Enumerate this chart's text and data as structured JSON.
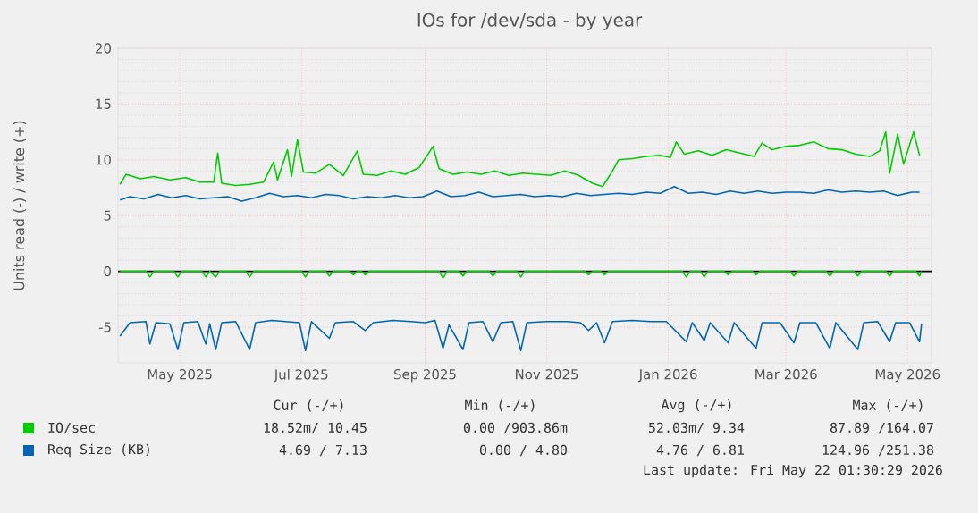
{
  "chart_data": {
    "type": "line",
    "title": "IOs for /dev/sda - by year",
    "ylabel": "Units read (-) / write (+)",
    "xlim": [
      "2025-04-14",
      "2026-05-27"
    ],
    "ylim": [
      -8.2,
      20
    ],
    "xticks": [
      {
        "value": "2025-05-15",
        "label": "May 2025"
      },
      {
        "value": "2025-07-15",
        "label": "Jul 2025"
      },
      {
        "value": "2025-09-15",
        "label": "Sep 2025"
      },
      {
        "value": "2025-11-15",
        "label": "Nov 2025"
      },
      {
        "value": "2026-01-15",
        "label": "Jan 2026"
      },
      {
        "value": "2026-03-15",
        "label": "Mar 2026"
      },
      {
        "value": "2026-05-15",
        "label": "May 2026"
      }
    ],
    "yticks": [
      -5,
      0,
      5,
      10,
      15,
      20
    ],
    "grid": true,
    "legend": "bottom",
    "ref_lines": [
      {
        "axis": "y",
        "value": 0,
        "color": "#000000"
      }
    ],
    "series": [
      {
        "name": "IO/sec",
        "color": "#00cc00",
        "x": [
          "2025-04-15",
          "2025-04-18",
          "2025-04-25",
          "2025-05-02",
          "2025-05-10",
          "2025-05-18",
          "2025-05-25",
          "2025-06-01",
          "2025-06-03",
          "2025-06-05",
          "2025-06-12",
          "2025-06-19",
          "2025-06-26",
          "2025-07-01",
          "2025-07-03",
          "2025-07-08",
          "2025-07-10",
          "2025-07-13",
          "2025-07-16",
          "2025-07-22",
          "2025-07-29",
          "2025-08-05",
          "2025-08-12",
          "2025-08-15",
          "2025-08-22",
          "2025-08-29",
          "2025-09-05",
          "2025-09-12",
          "2025-09-19",
          "2025-09-22",
          "2025-09-29",
          "2025-10-06",
          "2025-10-13",
          "2025-10-20",
          "2025-10-27",
          "2025-11-03",
          "2025-11-10",
          "2025-11-17",
          "2025-11-24",
          "2025-12-01",
          "2025-12-08",
          "2025-12-13",
          "2025-12-18",
          "2025-12-21",
          "2025-12-28",
          "2026-01-04",
          "2026-01-11",
          "2026-01-16",
          "2026-01-19",
          "2026-01-23",
          "2026-01-30",
          "2026-02-06",
          "2026-02-13",
          "2026-02-20",
          "2026-02-27",
          "2026-03-03",
          "2026-03-08",
          "2026-03-15",
          "2026-03-22",
          "2026-03-29",
          "2026-04-05",
          "2026-04-12",
          "2026-04-19",
          "2026-04-26",
          "2026-05-01",
          "2026-05-04",
          "2026-05-06",
          "2026-05-10",
          "2026-05-13",
          "2026-05-18",
          "2026-05-21"
        ],
        "values": [
          7.8,
          8.7,
          8.3,
          8.5,
          8.2,
          8.4,
          8.0,
          8.0,
          10.6,
          7.9,
          7.7,
          7.8,
          8.0,
          9.8,
          8.2,
          10.9,
          8.5,
          11.8,
          8.9,
          8.8,
          9.6,
          8.6,
          10.8,
          8.7,
          8.6,
          9.0,
          8.7,
          9.3,
          11.2,
          9.2,
          8.7,
          8.9,
          8.7,
          9.0,
          8.6,
          8.8,
          8.7,
          8.6,
          9.0,
          8.6,
          7.9,
          7.6,
          9.0,
          10.0,
          10.1,
          10.3,
          10.4,
          10.2,
          11.6,
          10.5,
          10.8,
          10.4,
          10.9,
          10.6,
          10.3,
          11.5,
          10.9,
          11.2,
          11.3,
          11.6,
          11.0,
          10.9,
          10.5,
          10.3,
          10.8,
          12.5,
          8.8,
          12.3,
          9.6,
          12.5,
          10.4
        ]
      },
      {
        "color": "#00cc00",
        "x": [
          "2025-04-15",
          "2025-04-28",
          "2025-04-30",
          "2025-05-02",
          "2025-05-12",
          "2025-05-14",
          "2025-05-16",
          "2025-05-26",
          "2025-05-28",
          "2025-05-30",
          "2025-06-02",
          "2025-06-04",
          "2025-06-17",
          "2025-06-19",
          "2025-06-21",
          "2025-07-15",
          "2025-07-17",
          "2025-07-19",
          "2025-07-27",
          "2025-07-29",
          "2025-07-31",
          "2025-08-08",
          "2025-08-10",
          "2025-08-12",
          "2025-08-14",
          "2025-08-16",
          "2025-08-18",
          "2025-09-22",
          "2025-09-24",
          "2025-09-26",
          "2025-10-02",
          "2025-10-04",
          "2025-10-06",
          "2025-10-17",
          "2025-10-19",
          "2025-10-21",
          "2025-10-31",
          "2025-11-02",
          "2025-11-04",
          "2025-12-04",
          "2025-12-06",
          "2025-12-08",
          "2025-12-12",
          "2025-12-14",
          "2025-12-16",
          "2026-01-22",
          "2026-01-24",
          "2026-01-26",
          "2026-01-31",
          "2026-02-02",
          "2026-02-04",
          "2026-02-12",
          "2026-02-14",
          "2026-02-16",
          "2026-02-26",
          "2026-02-28",
          "2026-03-02",
          "2026-03-17",
          "2026-03-19",
          "2026-03-21",
          "2026-04-04",
          "2026-04-06",
          "2026-04-08",
          "2026-04-18",
          "2026-04-20",
          "2026-04-22",
          "2026-05-04",
          "2026-05-06",
          "2026-05-08",
          "2026-05-19",
          "2026-05-21",
          "2026-05-22"
        ],
        "values": [
          0,
          0,
          -0.5,
          0,
          0,
          -0.5,
          0,
          0,
          -0.5,
          0,
          -0.5,
          0,
          0,
          -0.5,
          0,
          0,
          -0.5,
          0,
          0,
          -0.4,
          0,
          0,
          -0.3,
          0,
          0,
          -0.3,
          0,
          0,
          -0.6,
          0,
          0,
          -0.4,
          0,
          0,
          -0.4,
          0,
          0,
          -0.5,
          0,
          0,
          -0.3,
          0,
          0,
          -0.3,
          0,
          0,
          -0.5,
          0,
          0,
          -0.5,
          0,
          0,
          -0.3,
          0,
          0,
          -0.3,
          0,
          0,
          -0.4,
          0,
          0,
          -0.4,
          0,
          0,
          -0.4,
          0,
          0,
          -0.4,
          0,
          0,
          -0.4,
          0
        ]
      },
      {
        "name": "Req Size (KB)",
        "color": "#0066b3",
        "x": [
          "2025-04-15",
          "2025-04-20",
          "2025-04-27",
          "2025-05-04",
          "2025-05-11",
          "2025-05-18",
          "2025-05-25",
          "2025-06-01",
          "2025-06-08",
          "2025-06-15",
          "2025-06-22",
          "2025-06-29",
          "2025-07-06",
          "2025-07-13",
          "2025-07-20",
          "2025-07-27",
          "2025-08-03",
          "2025-08-10",
          "2025-08-17",
          "2025-08-24",
          "2025-08-31",
          "2025-09-07",
          "2025-09-14",
          "2025-09-21",
          "2025-09-28",
          "2025-10-05",
          "2025-10-12",
          "2025-10-19",
          "2025-10-26",
          "2025-11-02",
          "2025-11-09",
          "2025-11-16",
          "2025-11-23",
          "2025-11-30",
          "2025-12-07",
          "2025-12-14",
          "2025-12-21",
          "2025-12-28",
          "2026-01-04",
          "2026-01-11",
          "2026-01-18",
          "2026-01-25",
          "2026-02-01",
          "2026-02-08",
          "2026-02-15",
          "2026-02-22",
          "2026-03-01",
          "2026-03-08",
          "2026-03-15",
          "2026-03-22",
          "2026-03-29",
          "2026-04-05",
          "2026-04-12",
          "2026-04-19",
          "2026-04-26",
          "2026-05-03",
          "2026-05-10",
          "2026-05-17",
          "2026-05-21"
        ],
        "values": [
          6.4,
          6.7,
          6.5,
          6.9,
          6.6,
          6.8,
          6.5,
          6.6,
          6.7,
          6.3,
          6.6,
          7.0,
          6.7,
          6.8,
          6.6,
          6.9,
          6.8,
          6.5,
          6.7,
          6.6,
          6.8,
          6.6,
          6.7,
          7.2,
          6.7,
          6.8,
          7.1,
          6.7,
          6.8,
          6.9,
          6.7,
          6.8,
          6.7,
          7.0,
          6.8,
          6.9,
          7.0,
          6.9,
          7.1,
          7.0,
          7.6,
          7.0,
          7.1,
          6.9,
          7.2,
          7.0,
          7.2,
          7.0,
          7.1,
          7.1,
          7.0,
          7.3,
          7.1,
          7.2,
          7.1,
          7.2,
          6.8,
          7.1,
          7.1
        ]
      },
      {
        "color": "#0066b3",
        "x": [
          "2025-04-15",
          "2025-04-20",
          "2025-04-28",
          "2025-04-30",
          "2025-05-03",
          "2025-05-10",
          "2025-05-14",
          "2025-05-17",
          "2025-05-24",
          "2025-05-28",
          "2025-05-30",
          "2025-06-02",
          "2025-06-05",
          "2025-06-12",
          "2025-06-19",
          "2025-06-22",
          "2025-06-30",
          "2025-07-07",
          "2025-07-14",
          "2025-07-17",
          "2025-07-20",
          "2025-07-29",
          "2025-08-01",
          "2025-08-10",
          "2025-08-16",
          "2025-08-20",
          "2025-08-30",
          "2025-09-08",
          "2025-09-15",
          "2025-09-20",
          "2025-09-24",
          "2025-09-27",
          "2025-10-04",
          "2025-10-07",
          "2025-10-14",
          "2025-10-19",
          "2025-10-23",
          "2025-10-29",
          "2025-11-02",
          "2025-11-05",
          "2025-11-15",
          "2025-11-25",
          "2025-12-02",
          "2025-12-06",
          "2025-12-10",
          "2025-12-14",
          "2025-12-18",
          "2025-12-28",
          "2026-01-06",
          "2026-01-14",
          "2026-01-24",
          "2026-01-27",
          "2026-02-02",
          "2026-02-05",
          "2026-02-14",
          "2026-02-17",
          "2026-02-28",
          "2026-03-03",
          "2026-03-12",
          "2026-03-19",
          "2026-03-22",
          "2026-03-30",
          "2026-04-06",
          "2026-04-09",
          "2026-04-20",
          "2026-04-23",
          "2026-04-30",
          "2026-05-06",
          "2026-05-09",
          "2026-05-16",
          "2026-05-21",
          "2026-05-22"
        ],
        "values": [
          -5.8,
          -4.6,
          -4.5,
          -6.5,
          -4.6,
          -4.7,
          -7.0,
          -4.6,
          -4.5,
          -6.5,
          -4.7,
          -7.0,
          -4.6,
          -4.5,
          -7.0,
          -4.6,
          -4.4,
          -4.5,
          -4.6,
          -7.1,
          -4.5,
          -6.0,
          -4.6,
          -4.5,
          -5.3,
          -4.6,
          -4.4,
          -4.5,
          -4.6,
          -4.4,
          -6.9,
          -4.8,
          -7.0,
          -4.6,
          -4.5,
          -6.3,
          -4.6,
          -4.5,
          -7.1,
          -4.6,
          -4.5,
          -4.5,
          -4.6,
          -5.3,
          -4.6,
          -6.4,
          -4.5,
          -4.4,
          -4.5,
          -4.5,
          -6.3,
          -4.6,
          -6.2,
          -4.6,
          -6.4,
          -4.6,
          -6.9,
          -4.6,
          -4.6,
          -6.4,
          -4.6,
          -4.6,
          -6.9,
          -4.6,
          -7.0,
          -4.6,
          -4.5,
          -6.3,
          -4.6,
          -4.6,
          -6.3,
          -4.7
        ]
      }
    ],
    "annotations": [
      "Cur (-/+)",
      "Min (-/+)",
      "Avg (-/+)",
      "Max (-/+)",
      "18.52m/ 10.45",
      "0.00 /903.86m",
      "52.03m/  9.34",
      "87.89 /164.07",
      "4.69 /  7.13",
      "0.00 /  4.80",
      "4.76 /  6.81",
      "124.96 /251.38",
      "Last update: Fri May 22 01:30:29 2026"
    ]
  }
}
